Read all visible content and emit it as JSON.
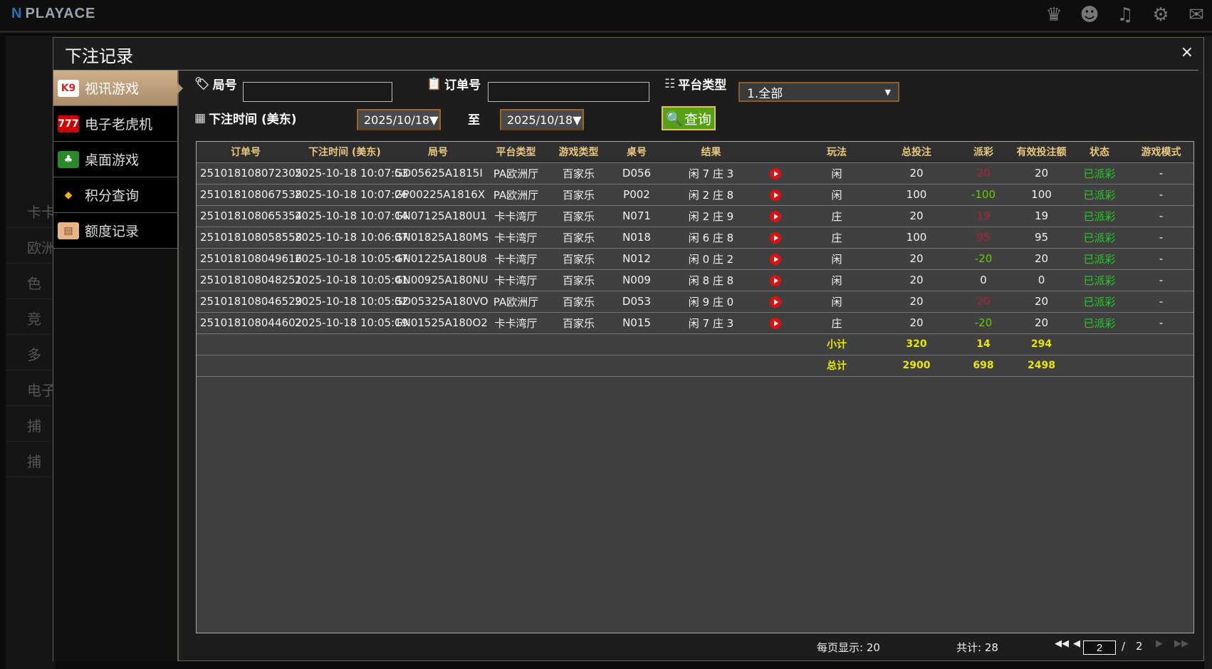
{
  "app": {
    "logo": "PLAYACE",
    "top_icons": [
      "vip-icon",
      "chat-users-icon",
      "music-icon",
      "gear-icon",
      "message-icon"
    ]
  },
  "background": {
    "items": [
      "卡卡",
      "欧洲",
      "色",
      "竞",
      "多",
      "电子",
      "捕",
      "捕"
    ]
  },
  "modal": {
    "title": "下注记录",
    "close_label": "×"
  },
  "sidebar": {
    "items": [
      {
        "label": "视讯游戏",
        "icon": "playing-cards-icon",
        "active": true
      },
      {
        "label": "电子老虎机",
        "icon": "slot-777-icon",
        "active": false
      },
      {
        "label": "桌面游戏",
        "icon": "table-game-chips-icon",
        "active": false
      },
      {
        "label": "积分查询",
        "icon": "diamond-icon",
        "active": false
      },
      {
        "label": "额度记录",
        "icon": "document-icon",
        "active": false
      }
    ]
  },
  "filters": {
    "round_label": "局号",
    "round_value": "",
    "order_label": "订单号",
    "order_value": "",
    "platform_label": "平台类型",
    "platform_value": "1.全部",
    "time_label": "下注时间 (美东)",
    "date_from": "2025/10/18▼",
    "to_label": "至",
    "date_to": "2025/10/18▼",
    "query_label": "查询"
  },
  "table": {
    "headers": [
      "订单号",
      "下注时间 (美东)",
      "局号",
      "平台类型",
      "游戏类型",
      "桌号",
      "结果",
      "",
      "玩法",
      "总投注",
      "派彩",
      "有效投注额",
      "状态",
      "游戏模式"
    ],
    "rows": [
      [
        "251018108072305",
        "2025-10-18 10:07:53",
        "GD05625A1815I",
        "PA欧洲厅",
        "百家乐",
        "D056",
        "闲 7 庄 3",
        "",
        "闲",
        "20",
        "20",
        "20",
        "已派彩",
        "-"
      ],
      [
        "251018108067538",
        "2025-10-18 10:07:26",
        "GP00225A1816X",
        "PA欧洲厅",
        "百家乐",
        "P002",
        "闲 2 庄 8",
        "",
        "闲",
        "100",
        "-100",
        "100",
        "已派彩",
        "-"
      ],
      [
        "251018108065354",
        "2025-10-18 10:07:14",
        "GN07125A180U1",
        "卡卡湾厅",
        "百家乐",
        "N071",
        "闲 2 庄 9",
        "",
        "庄",
        "20",
        "19",
        "19",
        "已派彩",
        "-"
      ],
      [
        "251018108058558",
        "2025-10-18 10:06:37",
        "GN01825A180MS",
        "卡卡湾厅",
        "百家乐",
        "N018",
        "闲 6 庄 8",
        "",
        "庄",
        "100",
        "95",
        "95",
        "已派彩",
        "-"
      ],
      [
        "251018108049616",
        "2025-10-18 10:05:47",
        "GN01225A180U8",
        "卡卡湾厅",
        "百家乐",
        "N012",
        "闲 0 庄 2",
        "",
        "闲",
        "20",
        "-20",
        "20",
        "已派彩",
        "-"
      ],
      [
        "251018108048251",
        "2025-10-18 10:05:41",
        "GN00925A180NU",
        "卡卡湾厅",
        "百家乐",
        "N009",
        "闲 8 庄 8",
        "",
        "闲",
        "20",
        "0",
        "0",
        "已派彩",
        "-"
      ],
      [
        "251018108046529",
        "2025-10-18 10:05:32",
        "GD05325A180VO",
        "PA欧洲厅",
        "百家乐",
        "D053",
        "闲 9 庄 0",
        "",
        "闲",
        "20",
        "20",
        "20",
        "已派彩",
        "-"
      ],
      [
        "251018108044602",
        "2025-10-18 10:05:19",
        "GN01525A180O2",
        "卡卡湾厅",
        "百家乐",
        "N015",
        "闲 7 庄 3",
        "",
        "庄",
        "20",
        "-20",
        "20",
        "已派彩",
        "-"
      ]
    ],
    "subtotal": {
      "label": "小计",
      "total_bet": "320",
      "payout": "14",
      "valid_bet": "294"
    },
    "grand_total": {
      "label": "总计",
      "total_bet": "2900",
      "payout": "698",
      "valid_bet": "2498"
    },
    "colors": {
      "header": "#e9c77e",
      "positive_payout": "#b0203a",
      "negative_payout": "#66cc00",
      "status": "#22cc22",
      "totals": "#e8e800"
    }
  },
  "footer": {
    "per_page": "每页显示: 20",
    "total": "共计: 28",
    "current_page": "2",
    "page_sep": "/",
    "total_pages": "2"
  }
}
